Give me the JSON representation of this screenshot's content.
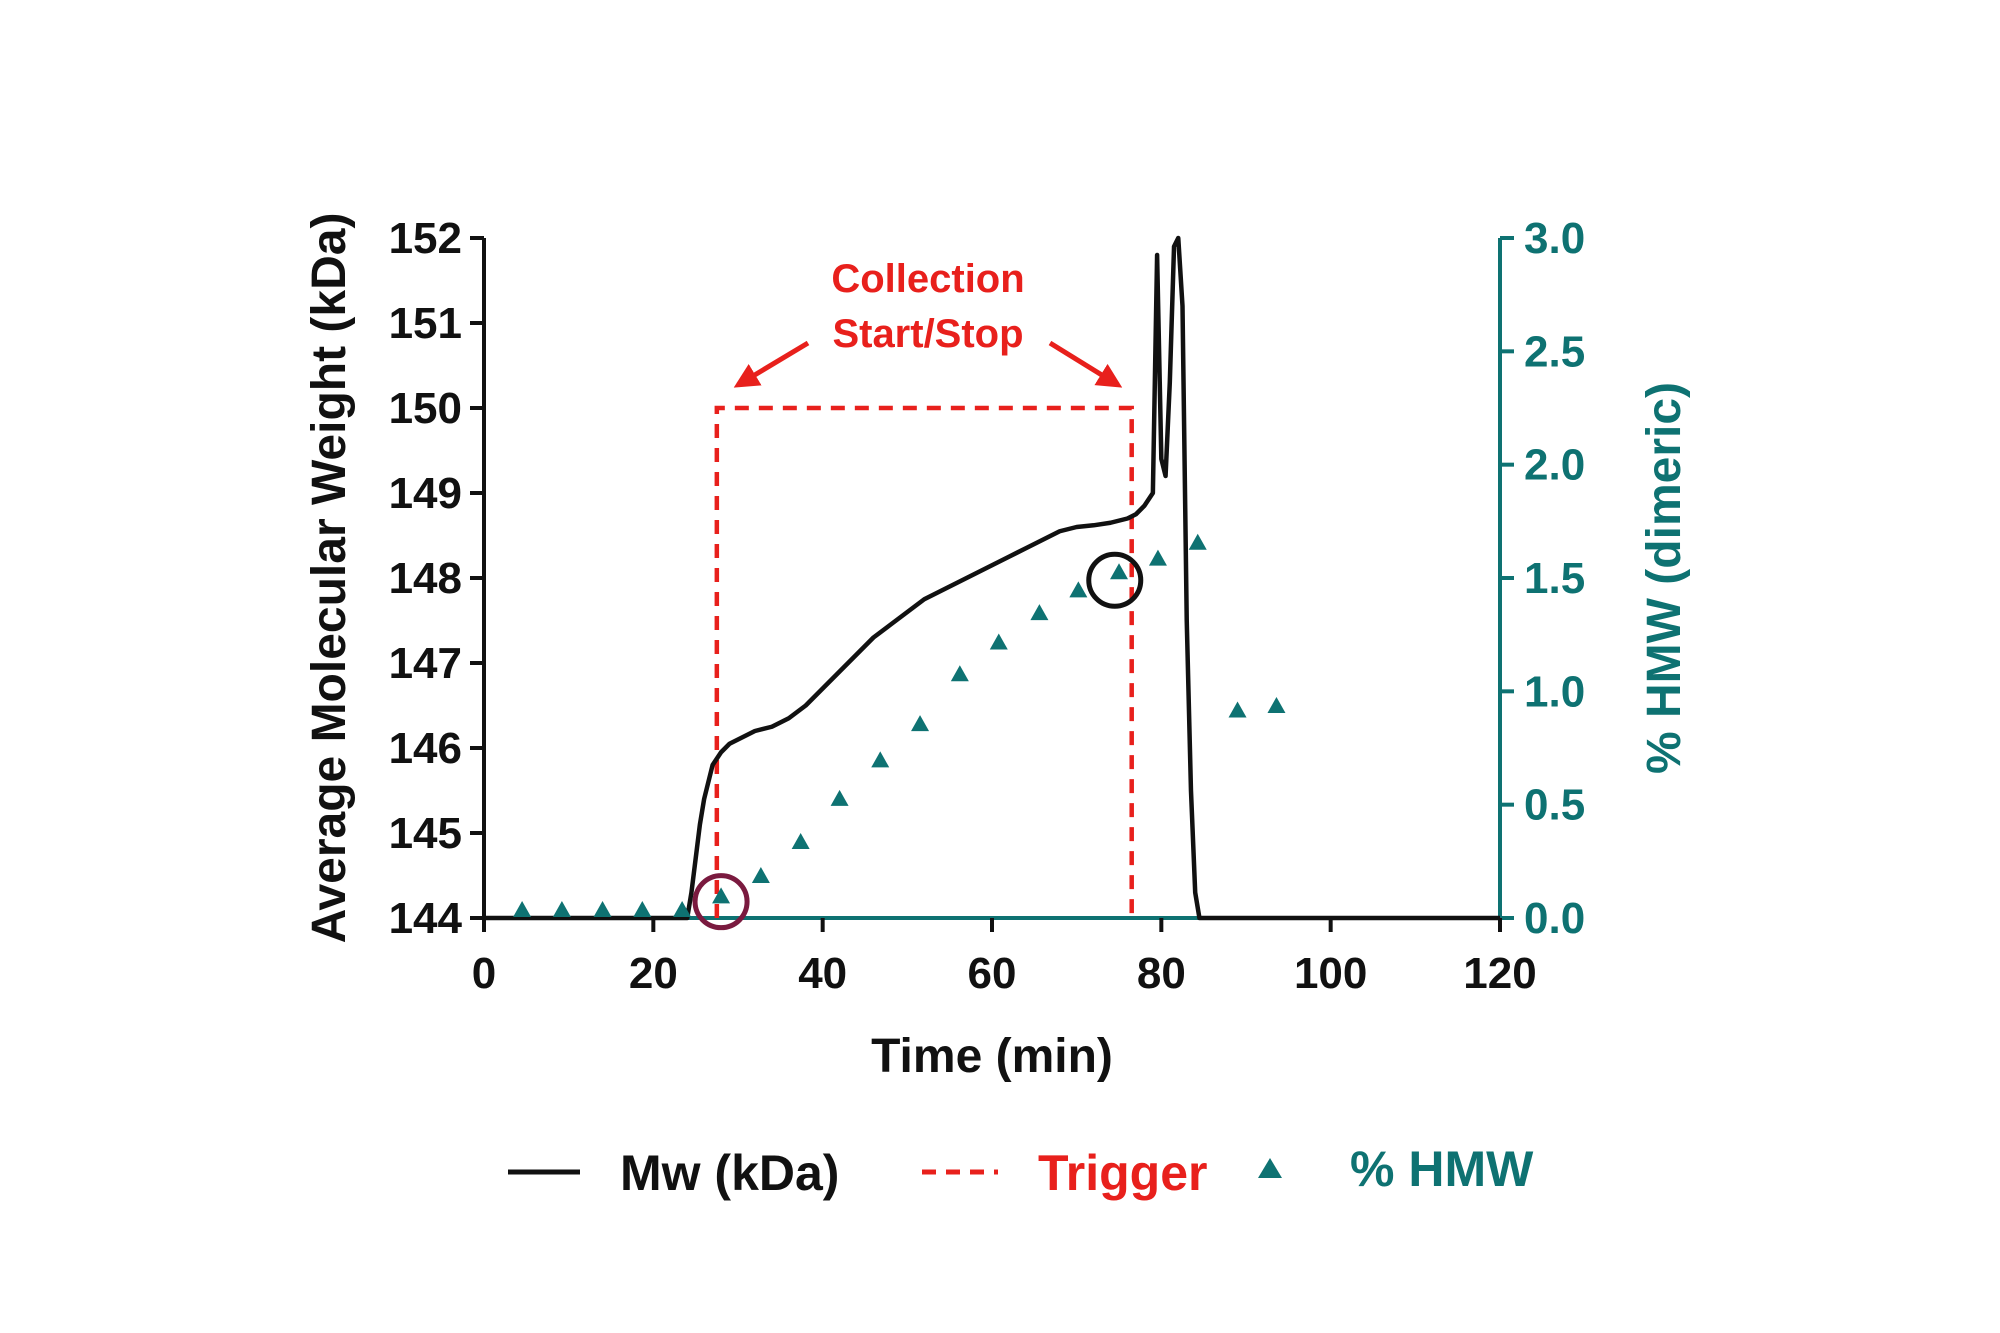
{
  "chart_data": {
    "type": "line",
    "xlabel": "Time (min)",
    "ylabel_left": "Average  Molecular  Weight (kDa)",
    "ylabel_right": "% HMW (dimeric)",
    "xlim": [
      0,
      120
    ],
    "ylim_left": [
      144,
      152
    ],
    "ylim_right": [
      0,
      3.0
    ],
    "x_ticks": [
      "0",
      "20",
      "40",
      "60",
      "80",
      "100",
      "120"
    ],
    "y_ticks_left": [
      "144",
      "145",
      "146",
      "147",
      "148",
      "149",
      "150",
      "151",
      "152"
    ],
    "y_ticks_right": [
      "0.0",
      "0.5",
      "1.0",
      "1.5",
      "2.0",
      "2.5",
      "3.0"
    ],
    "grid": false,
    "legend_position": "bottom",
    "colors": {
      "mw": "#111111",
      "trigger": "#e8201c",
      "hmw": "#0e7272",
      "start_circle": "#7a1a3f",
      "stop_circle": "#111111"
    },
    "series": [
      {
        "name": "Mw (kDa)",
        "axis": "left",
        "style": "solid",
        "x": [
          0,
          24,
          24.5,
          25,
          25.5,
          26,
          26.5,
          27,
          28,
          29,
          30,
          32,
          34,
          36,
          38,
          40,
          42,
          44,
          46,
          48,
          50,
          52,
          54,
          56,
          58,
          60,
          62,
          64,
          66,
          68,
          70,
          72,
          74,
          76,
          77,
          78,
          79,
          79.5,
          80,
          80.5,
          81,
          81.5,
          82,
          82.5,
          83,
          83.5,
          84,
          84.5,
          85,
          120
        ],
        "y": [
          144,
          144,
          144.3,
          144.7,
          145.1,
          145.4,
          145.6,
          145.8,
          145.95,
          146.05,
          146.1,
          146.2,
          146.25,
          146.35,
          146.5,
          146.7,
          146.9,
          147.1,
          147.3,
          147.45,
          147.6,
          147.75,
          147.85,
          147.95,
          148.05,
          148.15,
          148.25,
          148.35,
          148.45,
          148.55,
          148.6,
          148.62,
          148.65,
          148.7,
          148.75,
          148.85,
          149,
          151.8,
          149.4,
          149.2,
          150.3,
          151.9,
          152,
          151.2,
          147.5,
          145.5,
          144.3,
          144,
          144,
          144
        ]
      },
      {
        "name": "Trigger",
        "axis": "left",
        "style": "dashed",
        "x": [
          27.5,
          27.5,
          76.5,
          76.5
        ],
        "y": [
          144,
          150,
          150,
          144
        ]
      },
      {
        "name": "% HMW",
        "axis": "right",
        "style": "triangle-marker",
        "x": [
          4.5,
          9.2,
          14,
          18.7,
          23.4,
          28,
          32.7,
          37.4,
          42,
          46.8,
          51.5,
          56.2,
          60.8,
          65.6,
          70.2,
          75,
          79.6,
          84.3,
          89,
          93.6
        ],
        "y": [
          0,
          0,
          0,
          0,
          0,
          0.06,
          0.15,
          0.3,
          0.49,
          0.66,
          0.82,
          1.04,
          1.18,
          1.31,
          1.41,
          1.49,
          1.55,
          1.62,
          0.88,
          0.9
        ]
      }
    ],
    "annotations": {
      "collection_text_line1": "Collection",
      "collection_text_line2": "Start/Stop",
      "start_marker": {
        "x": 28,
        "y_right": 0.05
      },
      "stop_marker": {
        "x": 74.5,
        "y_right": 1.49
      }
    },
    "legend": [
      {
        "label": "Mw (kDa)",
        "color": "#111111",
        "marker": "line"
      },
      {
        "label": "Trigger",
        "color": "#e8201c",
        "marker": "dashed"
      },
      {
        "label": "% HMW",
        "color": "#0e7272",
        "marker": "triangle"
      }
    ]
  }
}
